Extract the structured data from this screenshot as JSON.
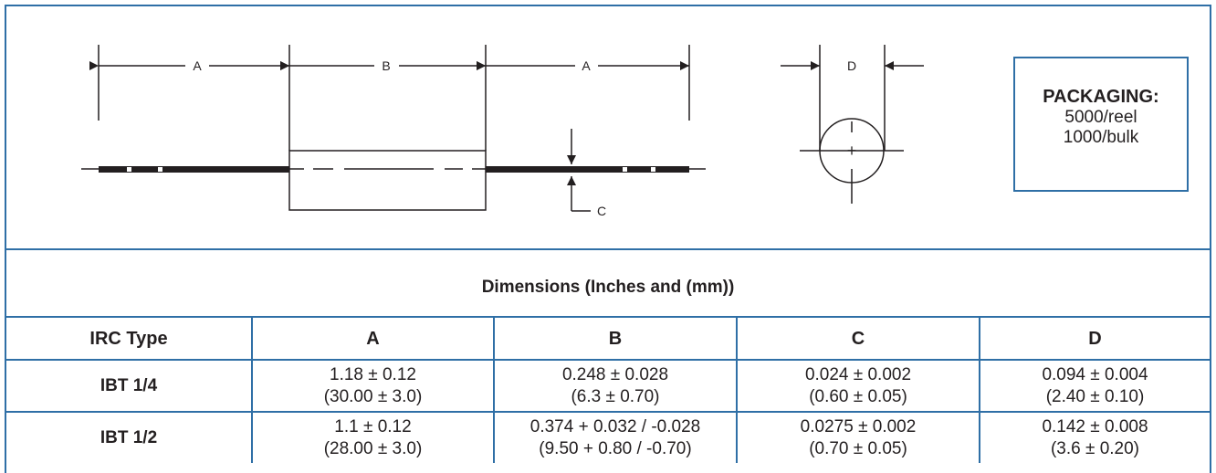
{
  "drawing": {
    "labels": {
      "a_left": "A",
      "b": "B",
      "a_right": "A",
      "c": "C",
      "d": "D",
      "plus": "+"
    }
  },
  "packaging": {
    "heading": "PACKAGING:",
    "reel": "5000/reel",
    "bulk": "1000/bulk"
  },
  "table": {
    "caption": "Dimensions (Inches and (mm))",
    "headers": [
      "IRC Type",
      "A",
      "B",
      "C",
      "D"
    ],
    "rows": [
      {
        "type": "IBT 1/4",
        "cells": [
          {
            "inch": "1.18 ± 0.12",
            "mm": "(30.00 ± 3.0)"
          },
          {
            "inch": "0.248 ± 0.028",
            "mm": "(6.3 ± 0.70)"
          },
          {
            "inch": "0.024 ± 0.002",
            "mm": "(0.60 ± 0.05)"
          },
          {
            "inch": "0.094 ± 0.004",
            "mm": "(2.40 ± 0.10)"
          }
        ]
      },
      {
        "type": "IBT 1/2",
        "cells": [
          {
            "inch": "1.1 ± 0.12",
            "mm": "(28.00 ± 3.0)"
          },
          {
            "inch": "0.374 + 0.032 / -0.028",
            "mm": "(9.50 + 0.80 / -0.70)"
          },
          {
            "inch": "0.0275 ± 0.002",
            "mm": "(0.70 ± 0.05)"
          },
          {
            "inch": "0.142 ± 0.008",
            "mm": "(3.6 ± 0.20)"
          }
        ]
      }
    ]
  }
}
